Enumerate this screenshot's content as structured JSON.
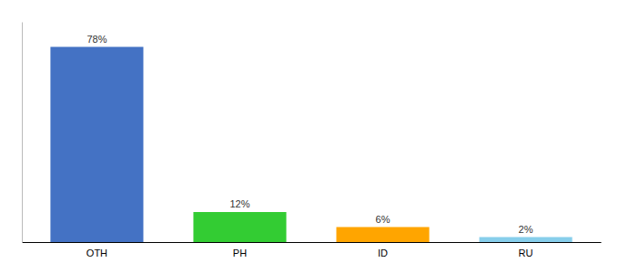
{
  "chart_data": {
    "type": "bar",
    "categories": [
      "OTH",
      "PH",
      "ID",
      "RU"
    ],
    "values": [
      78,
      12,
      6,
      2
    ],
    "value_labels": [
      "78%",
      "12%",
      "6%",
      "2%"
    ],
    "colors": [
      "#4472C4",
      "#33CC33",
      "#FFA500",
      "#87CEEB"
    ],
    "ylim": [
      0,
      88
    ],
    "data_labels": true,
    "tick_labels": "x"
  }
}
